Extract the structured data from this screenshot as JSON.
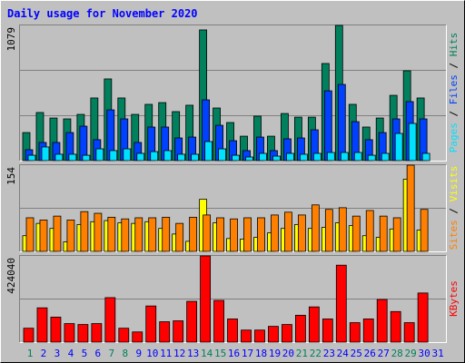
{
  "title": "Daily usage for November 2020",
  "legend_separator": "/",
  "categories": [
    "1",
    "2",
    "3",
    "4",
    "5",
    "6",
    "7",
    "8",
    "9",
    "10",
    "11",
    "12",
    "13",
    "14",
    "15",
    "16",
    "17",
    "18",
    "19",
    "20",
    "21",
    "22",
    "23",
    "24",
    "25",
    "26",
    "27",
    "28",
    "29",
    "30",
    "31"
  ],
  "category_colors": [
    "#00805c",
    "#0000ff",
    "#0000ff",
    "#0000ff",
    "#0000ff",
    "#0000ff",
    "#00805c",
    "#00805c",
    "#0000ff",
    "#0000ff",
    "#0000ff",
    "#0000ff",
    "#0000ff",
    "#00805c",
    "#00805c",
    "#0000ff",
    "#0000ff",
    "#0000ff",
    "#0000ff",
    "#0000ff",
    "#00805c",
    "#00805c",
    "#0000ff",
    "#0000ff",
    "#0000ff",
    "#0000ff",
    "#0000ff",
    "#00805c",
    "#00805c",
    "#0000ff",
    "#0000ff"
  ],
  "chart_data": [
    {
      "type": "bar",
      "ylim": [
        0,
        1079
      ],
      "yticks": [
        1079
      ],
      "grid_divisions": 3,
      "series": [
        {
          "name": "Hits",
          "color": "#00805c",
          "values": [
            224,
            384,
            340,
            333,
            369,
            500,
            652,
            500,
            369,
            449,
            463,
            391,
            442,
            1043,
            420,
            304,
            195,
            355,
            195,
            376,
            347,
            347,
            775,
            1079,
            449,
            268,
            340,
            521,
            717,
            500,
            null
          ]
        },
        {
          "name": "Files",
          "color": "#0040ff",
          "values": [
            87,
            145,
            145,
            224,
            275,
            167,
            405,
            333,
            145,
            268,
            268,
            181,
            188,
            485,
            282,
            159,
            80,
            188,
            80,
            174,
            181,
            246,
            557,
            608,
            311,
            167,
            224,
            333,
            471,
            333,
            null
          ]
        },
        {
          "name": "Pages",
          "color": "#00e0ff",
          "values": [
            43,
            109,
            51,
            51,
            43,
            94,
            80,
            94,
            58,
            72,
            80,
            51,
            51,
            152,
            94,
            43,
            29,
            58,
            36,
            58,
            51,
            58,
            65,
            65,
            65,
            43,
            58,
            217,
            297,
            58,
            null
          ]
        }
      ]
    },
    {
      "type": "bar",
      "ylim": [
        0,
        154
      ],
      "yticks": [
        154
      ],
      "grid_divisions": 2,
      "series": [
        {
          "name": "Visits",
          "color": "#ffff00",
          "values": [
            28,
            50,
            41,
            17,
            48,
            53,
            55,
            51,
            50,
            53,
            41,
            31,
            18,
            93,
            51,
            23,
            22,
            25,
            33,
            41,
            48,
            41,
            43,
            51,
            46,
            28,
            25,
            40,
            129,
            38,
            null
          ]
        },
        {
          "name": "Sites",
          "color": "#ff8000",
          "values": [
            60,
            56,
            63,
            56,
            71,
            68,
            61,
            58,
            60,
            60,
            61,
            50,
            61,
            65,
            60,
            58,
            60,
            60,
            65,
            70,
            65,
            83,
            75,
            78,
            63,
            73,
            63,
            60,
            154,
            75,
            null
          ]
        }
      ]
    },
    {
      "type": "bar",
      "ylim": [
        0,
        424040
      ],
      "yticks": [
        424040
      ],
      "grid_divisions": 2,
      "series": [
        {
          "name": "KBytes",
          "color": "#ff0000",
          "values": [
            68400,
            168720,
            123120,
            91200,
            86640,
            91200,
            218880,
            68400,
            50160,
            177840,
            100320,
            104880,
            200640,
            424040,
            205200,
            114000,
            59280,
            59280,
            77520,
            86640,
            132240,
            173280,
            114000,
            378480,
            95760,
            114000,
            209760,
            150480,
            95760,
            241680,
            null
          ]
        }
      ]
    }
  ]
}
